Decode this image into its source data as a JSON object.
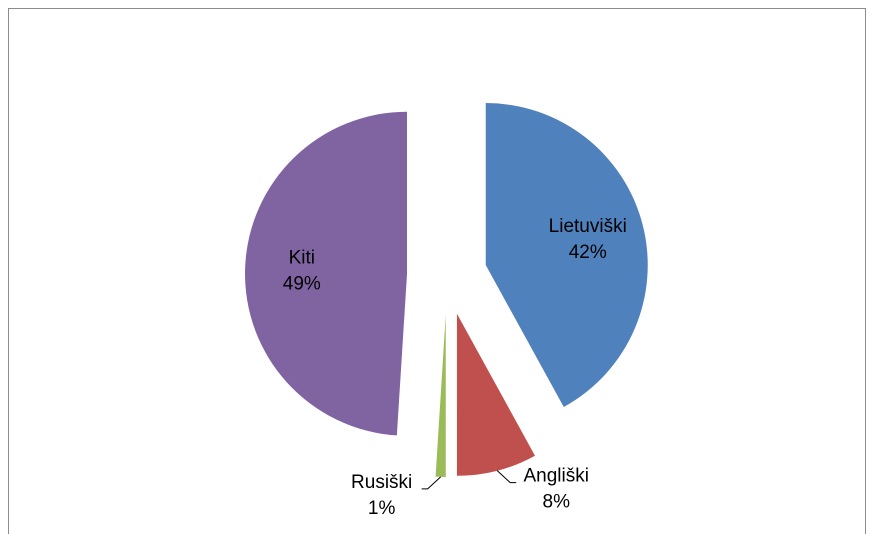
{
  "chart_data": {
    "type": "pie",
    "categories": [
      "Lietuviški",
      "Angliški",
      "Rusiški",
      "Kiti"
    ],
    "values": [
      42,
      8,
      1,
      49
    ],
    "value_labels": [
      "42%",
      "8%",
      "1%",
      "49%"
    ],
    "colors": [
      "#4f81bd",
      "#c0504d",
      "#9bbb59",
      "#8064a2"
    ],
    "exploded": true
  }
}
